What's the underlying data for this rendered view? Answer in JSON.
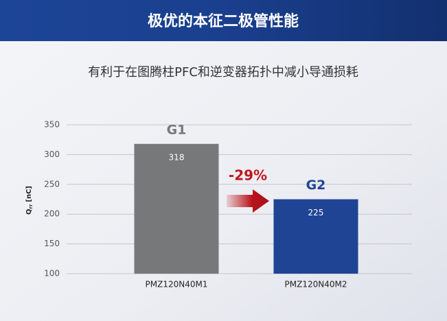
{
  "chart_data": {
    "type": "bar",
    "title": "极优的本征二极管性能",
    "subtitle": "有利于在图腾柱PFC和逆变器拓扑中减小导通损耗",
    "y_label": {
      "symbol": "Q",
      "subscript": "rr",
      "unit": "[nC]"
    },
    "categories": [
      "PMZ120N40M1",
      "PMZ120N40M2"
    ],
    "bar_labels": [
      "G1",
      "G2"
    ],
    "values": [
      318,
      225
    ],
    "colors": [
      "#77787a",
      "#1f4494"
    ],
    "annotation": "-29%",
    "ylim": [
      100,
      350
    ],
    "yticks": [
      100,
      150,
      200,
      250,
      300,
      350
    ],
    "grid": true
  }
}
